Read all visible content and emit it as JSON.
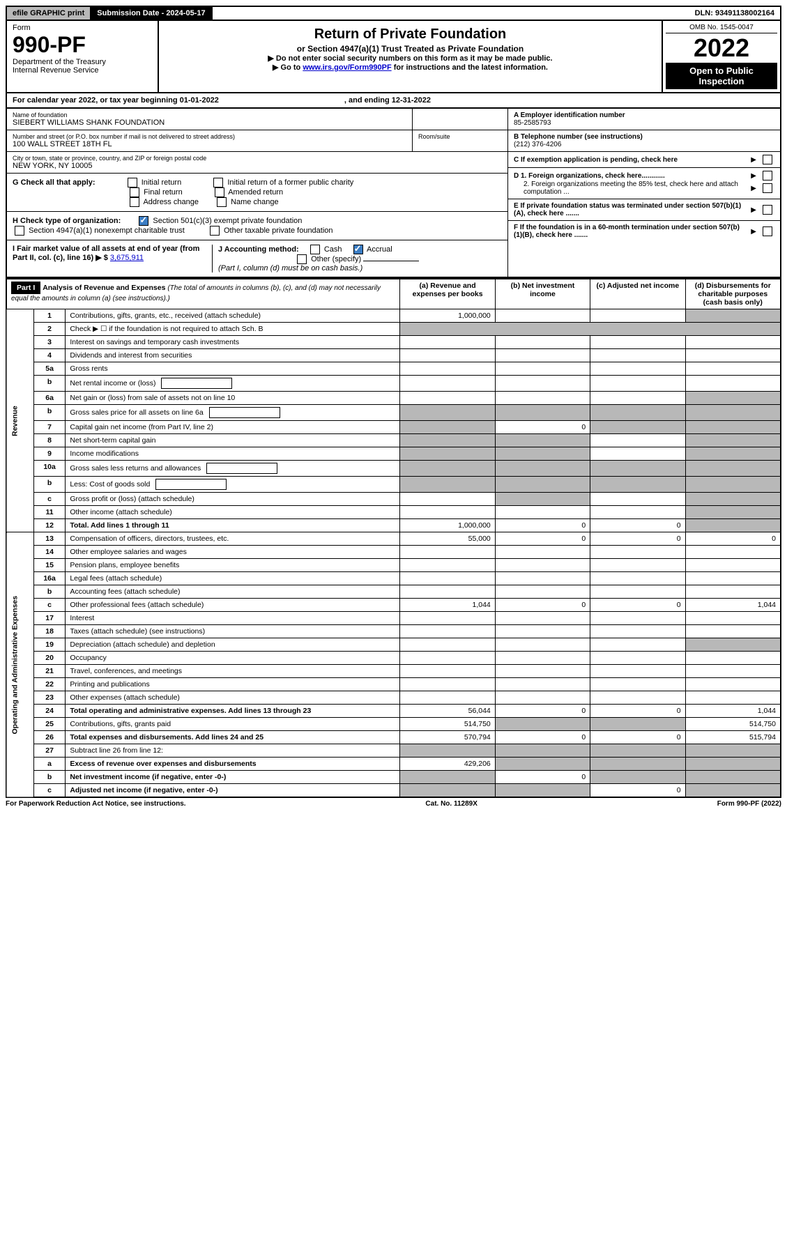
{
  "top": {
    "efile": "efile GRAPHIC print",
    "submission": "Submission Date - 2024-05-17",
    "dln": "DLN: 93491138002164"
  },
  "header": {
    "form_label": "Form",
    "form_no": "990-PF",
    "dept": "Department of the Treasury",
    "irs": "Internal Revenue Service",
    "title": "Return of Private Foundation",
    "subtitle": "or Section 4947(a)(1) Trust Treated as Private Foundation",
    "inst1": "▶ Do not enter social security numbers on this form as it may be made public.",
    "inst2_pre": "▶ Go to ",
    "inst2_link": "www.irs.gov/Form990PF",
    "inst2_post": " for instructions and the latest information.",
    "omb": "OMB No. 1545-0047",
    "year": "2022",
    "open": "Open to Public Inspection"
  },
  "calendar": {
    "text": "For calendar year 2022, or tax year beginning 01-01-2022",
    "ending": ", and ending 12-31-2022"
  },
  "foundation": {
    "name_label": "Name of foundation",
    "name": "SIEBERT WILLIAMS SHANK FOUNDATION",
    "addr_label": "Number and street (or P.O. box number if mail is not delivered to street address)",
    "addr": "100 WALL STREET 18TH FL",
    "room_label": "Room/suite",
    "city_label": "City or town, state or province, country, and ZIP or foreign postal code",
    "city": "NEW YORK, NY  10005",
    "ein_label": "A Employer identification number",
    "ein": "85-2585793",
    "tel_label": "B Telephone number (see instructions)",
    "tel": "(212) 376-4206",
    "c_label": "C If exemption application is pending, check here",
    "d1": "D 1. Foreign organizations, check here............",
    "d2": "2. Foreign organizations meeting the 85% test, check here and attach computation ...",
    "e": "E  If private foundation status was terminated under section 507(b)(1)(A), check here .......",
    "f": "F  If the foundation is in a 60-month termination under section 507(b)(1)(B), check here .......",
    "g_label": "G Check all that apply:",
    "g_opts": [
      "Initial return",
      "Initial return of a former public charity",
      "Final return",
      "Amended return",
      "Address change",
      "Name change"
    ],
    "h_label": "H Check type of organization:",
    "h_opt1": "Section 501(c)(3) exempt private foundation",
    "h_opt2": "Section 4947(a)(1) nonexempt charitable trust",
    "h_opt3": "Other taxable private foundation",
    "i_label": "I Fair market value of all assets at end of year (from Part II, col. (c), line 16) ▶ $",
    "i_value": "3,675,911",
    "j_label": "J Accounting method:",
    "j_cash": "Cash",
    "j_accrual": "Accrual",
    "j_other": "Other (specify)",
    "j_note": "(Part I, column (d) must be on cash basis.)"
  },
  "part1": {
    "label": "Part I",
    "title": "Analysis of Revenue and Expenses",
    "note": "(The total of amounts in columns (b), (c), and (d) may not necessarily equal the amounts in column (a) (see instructions).)",
    "col_a": "(a)    Revenue and expenses per books",
    "col_b": "(b)    Net investment income",
    "col_c": "(c)    Adjusted net income",
    "col_d": "(d)    Disbursements for charitable purposes (cash basis only)"
  },
  "sides": {
    "revenue": "Revenue",
    "expenses": "Operating and Administrative Expenses"
  },
  "rows": [
    {
      "n": "1",
      "t": "Contributions, gifts, grants, etc., received (attach schedule)",
      "a": "1,000,000",
      "b": "",
      "c": "",
      "d": "shaded"
    },
    {
      "n": "2",
      "t": "Check ▶ ☐ if the foundation is not required to attach Sch. B",
      "span": true
    },
    {
      "n": "3",
      "t": "Interest on savings and temporary cash investments"
    },
    {
      "n": "4",
      "t": "Dividends and interest from securities"
    },
    {
      "n": "5a",
      "t": "Gross rents"
    },
    {
      "n": "b",
      "t": "Net rental income or (loss)",
      "inline": true
    },
    {
      "n": "6a",
      "t": "Net gain or (loss) from sale of assets not on line 10",
      "d": "shaded"
    },
    {
      "n": "b",
      "t": "Gross sales price for all assets on line 6a",
      "inline": true,
      "shadeall": true
    },
    {
      "n": "7",
      "t": "Capital gain net income (from Part IV, line 2)",
      "b": "0",
      "ashade": true,
      "cshade": true,
      "d": "shaded"
    },
    {
      "n": "8",
      "t": "Net short-term capital gain",
      "ashade": true,
      "bshade": true,
      "d": "shaded"
    },
    {
      "n": "9",
      "t": "Income modifications",
      "ashade": true,
      "bshade": true,
      "d": "shaded"
    },
    {
      "n": "10a",
      "t": "Gross sales less returns and allowances",
      "inline": true,
      "shadeall": true
    },
    {
      "n": "b",
      "t": "Less: Cost of goods sold",
      "inline": true,
      "shadeall": true
    },
    {
      "n": "c",
      "t": "Gross profit or (loss) (attach schedule)",
      "bshade": true,
      "d": "shaded"
    },
    {
      "n": "11",
      "t": "Other income (attach schedule)",
      "d": "shaded"
    },
    {
      "n": "12",
      "t": "Total. Add lines 1 through 11",
      "bold": true,
      "a": "1,000,000",
      "b": "0",
      "c": "0",
      "d": "shaded"
    },
    {
      "n": "13",
      "t": "Compensation of officers, directors, trustees, etc.",
      "a": "55,000",
      "b": "0",
      "c": "0",
      "d": "0",
      "section": "exp"
    },
    {
      "n": "14",
      "t": "Other employee salaries and wages"
    },
    {
      "n": "15",
      "t": "Pension plans, employee benefits"
    },
    {
      "n": "16a",
      "t": "Legal fees (attach schedule)"
    },
    {
      "n": "b",
      "t": "Accounting fees (attach schedule)"
    },
    {
      "n": "c",
      "t": "Other professional fees (attach schedule)",
      "a": "1,044",
      "b": "0",
      "c": "0",
      "d": "1,044"
    },
    {
      "n": "17",
      "t": "Interest"
    },
    {
      "n": "18",
      "t": "Taxes (attach schedule) (see instructions)"
    },
    {
      "n": "19",
      "t": "Depreciation (attach schedule) and depletion",
      "d": "shaded"
    },
    {
      "n": "20",
      "t": "Occupancy"
    },
    {
      "n": "21",
      "t": "Travel, conferences, and meetings"
    },
    {
      "n": "22",
      "t": "Printing and publications"
    },
    {
      "n": "23",
      "t": "Other expenses (attach schedule)"
    },
    {
      "n": "24",
      "t": "Total operating and administrative expenses. Add lines 13 through 23",
      "bold": true,
      "a": "56,044",
      "b": "0",
      "c": "0",
      "d": "1,044"
    },
    {
      "n": "25",
      "t": "Contributions, gifts, grants paid",
      "a": "514,750",
      "bshade": true,
      "cshade": true,
      "d": "514,750"
    },
    {
      "n": "26",
      "t": "Total expenses and disbursements. Add lines 24 and 25",
      "bold": true,
      "a": "570,794",
      "b": "0",
      "c": "0",
      "d": "515,794"
    },
    {
      "n": "27",
      "t": "Subtract line 26 from line 12:",
      "shadeall": true
    },
    {
      "n": "a",
      "t": "Excess of revenue over expenses and disbursements",
      "bold": true,
      "a": "429,206",
      "bshade": true,
      "cshade": true,
      "d": "shaded"
    },
    {
      "n": "b",
      "t": "Net investment income (if negative, enter -0-)",
      "bold": true,
      "ashade": true,
      "b": "0",
      "cshade": true,
      "d": "shaded"
    },
    {
      "n": "c",
      "t": "Adjusted net income (if negative, enter -0-)",
      "bold": true,
      "ashade": true,
      "bshade": true,
      "c": "0",
      "d": "shaded"
    }
  ],
  "footer": {
    "left": "For Paperwork Reduction Act Notice, see instructions.",
    "center": "Cat. No. 11289X",
    "right": "Form 990-PF (2022)"
  }
}
